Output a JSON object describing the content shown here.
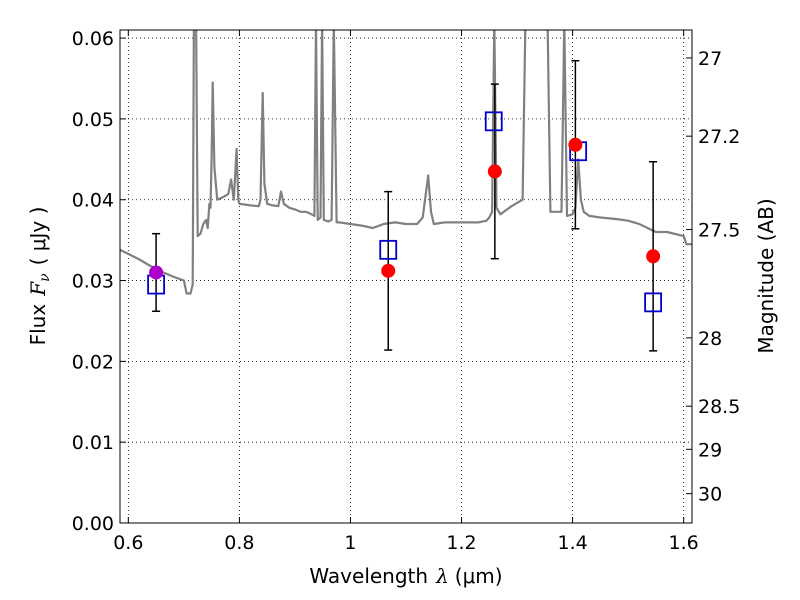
{
  "chart_data": {
    "type": "scatter",
    "title": "",
    "xlabel": "Wavelength",
    "xlabel_symbol": "λ",
    "xlabel_unit": "(μm)",
    "ylabel": "Flux",
    "ylabel_symbol": "F",
    "ylabel_subscript": "ν",
    "ylabel_unit": "( μJy )",
    "y2label": "Magnitude (AB)",
    "xlim": [
      0.585,
      1.615
    ],
    "ylim": [
      0.0,
      0.061
    ],
    "grid": true,
    "x_ticks": [
      {
        "value": 0.6,
        "label": "0.6"
      },
      {
        "value": 0.8,
        "label": "0.8"
      },
      {
        "value": 1.0,
        "label": "1"
      },
      {
        "value": 1.2,
        "label": "1.2"
      },
      {
        "value": 1.4,
        "label": "1.4"
      },
      {
        "value": 1.6,
        "label": "1.6"
      }
    ],
    "y_ticks": [
      {
        "value": 0.0,
        "label": "0.00"
      },
      {
        "value": 0.01,
        "label": "0.01"
      },
      {
        "value": 0.02,
        "label": "0.02"
      },
      {
        "value": 0.03,
        "label": "0.03"
      },
      {
        "value": 0.04,
        "label": "0.04"
      },
      {
        "value": 0.05,
        "label": "0.05"
      },
      {
        "value": 0.06,
        "label": "0.06"
      }
    ],
    "y2_ticks": [
      {
        "mag": 27,
        "label": "27"
      },
      {
        "mag": 27.2,
        "label": "27.2"
      },
      {
        "mag": 27.5,
        "label": "27.5"
      },
      {
        "mag": 28,
        "label": "28"
      },
      {
        "mag": 28.5,
        "label": "28.5"
      },
      {
        "mag": 29,
        "label": "29"
      },
      {
        "mag": 30,
        "label": "30"
      }
    ],
    "model_spectrum": {
      "color": "#808080",
      "points": [
        [
          0.585,
          0.0338
        ],
        [
          0.6,
          0.0333
        ],
        [
          0.62,
          0.0326
        ],
        [
          0.64,
          0.0318
        ],
        [
          0.66,
          0.0311
        ],
        [
          0.68,
          0.0305
        ],
        [
          0.7,
          0.03
        ],
        [
          0.705,
          0.0284
        ],
        [
          0.712,
          0.0284
        ],
        [
          0.716,
          0.0295
        ],
        [
          0.718,
          0.062
        ],
        [
          0.722,
          0.062
        ],
        [
          0.725,
          0.0355
        ],
        [
          0.73,
          0.0358
        ],
        [
          0.735,
          0.037
        ],
        [
          0.74,
          0.0375
        ],
        [
          0.743,
          0.0365
        ],
        [
          0.746,
          0.0395
        ],
        [
          0.748,
          0.039
        ],
        [
          0.75,
          0.045
        ],
        [
          0.752,
          0.0545
        ],
        [
          0.755,
          0.044
        ],
        [
          0.76,
          0.04
        ],
        [
          0.77,
          0.0403
        ],
        [
          0.78,
          0.0407
        ],
        [
          0.785,
          0.0425
        ],
        [
          0.79,
          0.04
        ],
        [
          0.795,
          0.0463
        ],
        [
          0.798,
          0.04
        ],
        [
          0.8,
          0.0395
        ],
        [
          0.82,
          0.0393
        ],
        [
          0.835,
          0.0392
        ],
        [
          0.838,
          0.04
        ],
        [
          0.842,
          0.0532
        ],
        [
          0.845,
          0.042
        ],
        [
          0.85,
          0.0395
        ],
        [
          0.86,
          0.0393
        ],
        [
          0.87,
          0.0392
        ],
        [
          0.875,
          0.041
        ],
        [
          0.88,
          0.0395
        ],
        [
          0.89,
          0.039
        ],
        [
          0.9,
          0.0388
        ],
        [
          0.91,
          0.0385
        ],
        [
          0.92,
          0.0385
        ],
        [
          0.93,
          0.0382
        ],
        [
          0.935,
          0.038
        ],
        [
          0.938,
          0.062
        ],
        [
          0.941,
          0.0375
        ],
        [
          0.946,
          0.0378
        ],
        [
          0.949,
          0.062
        ],
        [
          0.952,
          0.0375
        ],
        [
          0.96,
          0.0373
        ],
        [
          0.966,
          0.0375
        ],
        [
          0.97,
          0.062
        ],
        [
          0.975,
          0.0372
        ],
        [
          0.98,
          0.0372
        ],
        [
          1.0,
          0.037
        ],
        [
          1.02,
          0.0368
        ],
        [
          1.04,
          0.0365
        ],
        [
          1.06,
          0.037
        ],
        [
          1.08,
          0.0372
        ],
        [
          1.1,
          0.037
        ],
        [
          1.12,
          0.037
        ],
        [
          1.13,
          0.0378
        ],
        [
          1.14,
          0.043
        ],
        [
          1.145,
          0.0385
        ],
        [
          1.15,
          0.037
        ],
        [
          1.17,
          0.0372
        ],
        [
          1.19,
          0.0372
        ],
        [
          1.21,
          0.0372
        ],
        [
          1.23,
          0.0372
        ],
        [
          1.245,
          0.0374
        ],
        [
          1.25,
          0.0378
        ],
        [
          1.255,
          0.0385
        ],
        [
          1.259,
          0.062
        ],
        [
          1.263,
          0.039
        ],
        [
          1.27,
          0.0382
        ],
        [
          1.29,
          0.0392
        ],
        [
          1.31,
          0.04
        ],
        [
          1.315,
          0.062
        ],
        [
          1.355,
          0.062
        ],
        [
          1.36,
          0.0385
        ],
        [
          1.37,
          0.0385
        ],
        [
          1.38,
          0.0385
        ],
        [
          1.385,
          0.062
        ],
        [
          1.39,
          0.038
        ],
        [
          1.4,
          0.0382
        ],
        [
          1.405,
          0.039
        ],
        [
          1.41,
          0.045
        ],
        [
          1.415,
          0.04
        ],
        [
          1.42,
          0.0385
        ],
        [
          1.43,
          0.038
        ],
        [
          1.45,
          0.0378
        ],
        [
          1.48,
          0.0376
        ],
        [
          1.5,
          0.0374
        ],
        [
          1.52,
          0.037
        ],
        [
          1.55,
          0.036
        ],
        [
          1.57,
          0.036
        ],
        [
          1.6,
          0.0355
        ],
        [
          1.605,
          0.0345
        ],
        [
          1.615,
          0.0345
        ]
      ]
    },
    "observed": {
      "color": "#ff0000",
      "highlight_color": "#aa00cc",
      "points": [
        {
          "x": 0.65,
          "y": 0.031,
          "yerr": 0.0048,
          "highlight": true
        },
        {
          "x": 1.068,
          "y": 0.0312,
          "yerr": 0.0098,
          "highlight": false
        },
        {
          "x": 1.26,
          "y": 0.0435,
          "yerr": 0.0108,
          "highlight": false
        },
        {
          "x": 1.405,
          "y": 0.0468,
          "yerr": 0.0104,
          "highlight": false
        },
        {
          "x": 1.545,
          "y": 0.033,
          "yerr": 0.0117,
          "highlight": false
        }
      ]
    },
    "model_photometry": {
      "color": "#0000cc",
      "points": [
        {
          "x": 0.65,
          "y": 0.0295
        },
        {
          "x": 1.068,
          "y": 0.0338
        },
        {
          "x": 1.258,
          "y": 0.0497
        },
        {
          "x": 1.41,
          "y": 0.046
        },
        {
          "x": 1.545,
          "y": 0.0273
        }
      ]
    },
    "colors": {
      "grid": "#000000",
      "axes": "#000000",
      "errorbar": "#000000"
    }
  }
}
